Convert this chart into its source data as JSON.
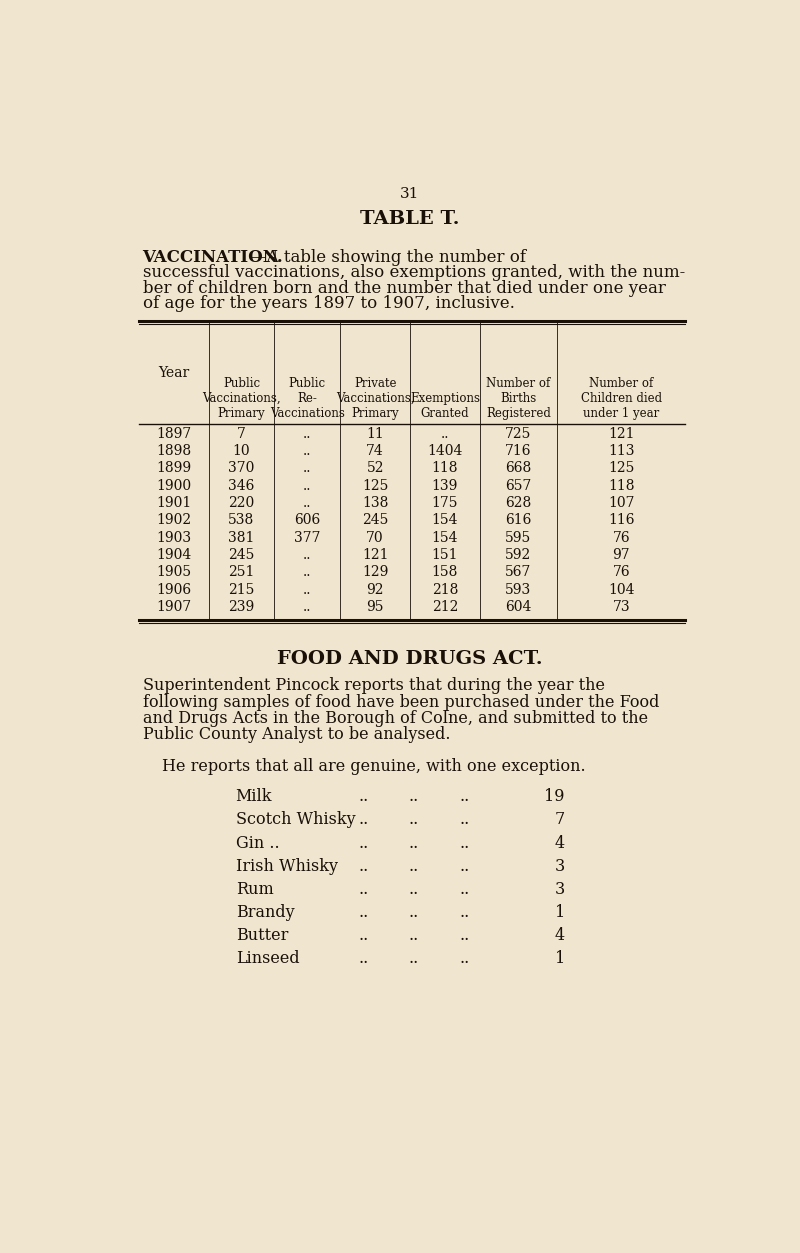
{
  "page_number": "31",
  "title": "TABLE T.",
  "subtitle_bold": "VACCINATION.",
  "col_headers": [
    "Year",
    "Public\nVaccinations,\nPrimary",
    "Public\nRe-\nVaccinations",
    "Private\nVaccinations,\nPrimary",
    "Exemptions\nGranted",
    "Number of\nBirths\nRegistered",
    "Number of\nChildren died\nunder 1 year"
  ],
  "table_data": [
    [
      "1897",
      "7",
      "..",
      "11",
      "..",
      "725",
      "121"
    ],
    [
      "1898",
      "10",
      "..",
      "74",
      "1404",
      "716",
      "113"
    ],
    [
      "1899",
      "370",
      "..",
      "52",
      "118",
      "668",
      "125"
    ],
    [
      "1900",
      "346",
      "..",
      "125",
      "139",
      "657",
      "118"
    ],
    [
      "1901",
      "220",
      "..",
      "138",
      "175",
      "628",
      "107"
    ],
    [
      "1902",
      "538",
      "606",
      "245",
      "154",
      "616",
      "116"
    ],
    [
      "1903",
      "381",
      "377",
      "70",
      "154",
      "595",
      "76"
    ],
    [
      "1904",
      "245",
      "..",
      "121",
      "151",
      "592",
      "97"
    ],
    [
      "1905",
      "251",
      "..",
      "129",
      "158",
      "567",
      "76"
    ],
    [
      "1906",
      "215",
      "..",
      "92",
      "218",
      "593",
      "104"
    ],
    [
      "1907",
      "239",
      "..",
      "95",
      "212",
      "604",
      "73"
    ]
  ],
  "section2_title": "FOOD AND DRUGS ACT.",
  "intro_lines": [
    "Superintendent Pincock reports that during the year the",
    "following samples of food have been purchased under the Food",
    "and Drugs Acts in the Borough of Colne, and submitted to the",
    "Public County Analyst to be analysed."
  ],
  "section2_note": "He reports that all are genuine, with one exception.",
  "food_items": [
    [
      "Milk",
      "19"
    ],
    [
      "Scotch Whisky",
      "7"
    ],
    [
      "Gin ..",
      "4"
    ],
    [
      "Irish Whisky",
      "3"
    ],
    [
      "Rum",
      "3"
    ],
    [
      "Brandy",
      "1"
    ],
    [
      "Butter",
      "4"
    ],
    [
      "Linseed",
      "1"
    ]
  ],
  "bg_color": "#f0e6d0",
  "text_color": "#1a1008",
  "subtitle_rest_line1": "—A table showing the number of",
  "subtitle_line2": "successful vaccinations, also exemptions granted, with the num-",
  "subtitle_line3": "ber of children born and the number that died under one year",
  "subtitle_line4": "of age for the years 1897 to 1907, inclusive."
}
